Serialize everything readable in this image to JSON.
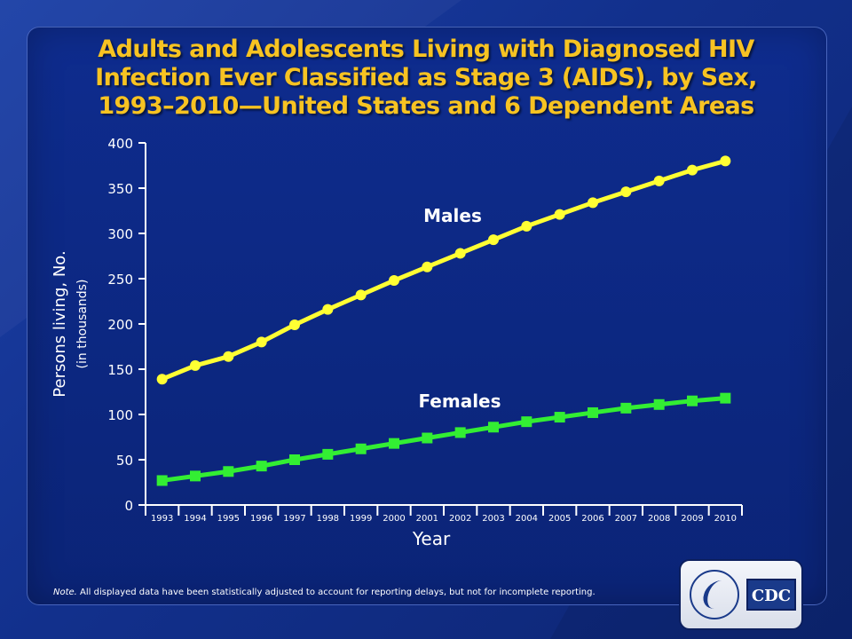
{
  "title": {
    "line1": "Adults and Adolescents Living with Diagnosed HIV",
    "line2": "Infection Ever Classified as Stage 3 (AIDS), by Sex,",
    "line3": "1993–2010—United States and 6 Dependent Areas"
  },
  "note": {
    "prefix": "Note.",
    "text": " All displayed data have been statistically adjusted to account for reporting delays, but not for incomplete reporting."
  },
  "logo": {
    "text": "CDC"
  },
  "colors": {
    "background": "#12308c",
    "title": "#f7c322",
    "males": "#ffff33",
    "females": "#33ee33",
    "axis": "#ffffff"
  },
  "chart_data": {
    "type": "line",
    "x": [
      "1993",
      "1994",
      "1995",
      "1996",
      "1997",
      "1998",
      "1999",
      "2000",
      "2001",
      "2002",
      "2003",
      "2004",
      "2005",
      "2006",
      "2007",
      "2008",
      "2009",
      "2010"
    ],
    "series": [
      {
        "name": "Males",
        "marker": "circle",
        "values": [
          139,
          154,
          164,
          180,
          199,
          216,
          232,
          248,
          263,
          278,
          293,
          308,
          321,
          334,
          346,
          358,
          370,
          380
        ]
      },
      {
        "name": "Females",
        "marker": "square",
        "values": [
          27,
          32,
          37,
          43,
          50,
          56,
          62,
          68,
          74,
          80,
          86,
          92,
          97,
          102,
          107,
          111,
          115,
          118
        ]
      }
    ],
    "ylim": [
      0,
      400
    ],
    "yticks": [
      0,
      50,
      100,
      150,
      200,
      250,
      300,
      350,
      400
    ],
    "xlabel": "Year",
    "ylabel": "Persons living, No.",
    "ylabel_sub": "(in thousands)",
    "grid": false
  }
}
